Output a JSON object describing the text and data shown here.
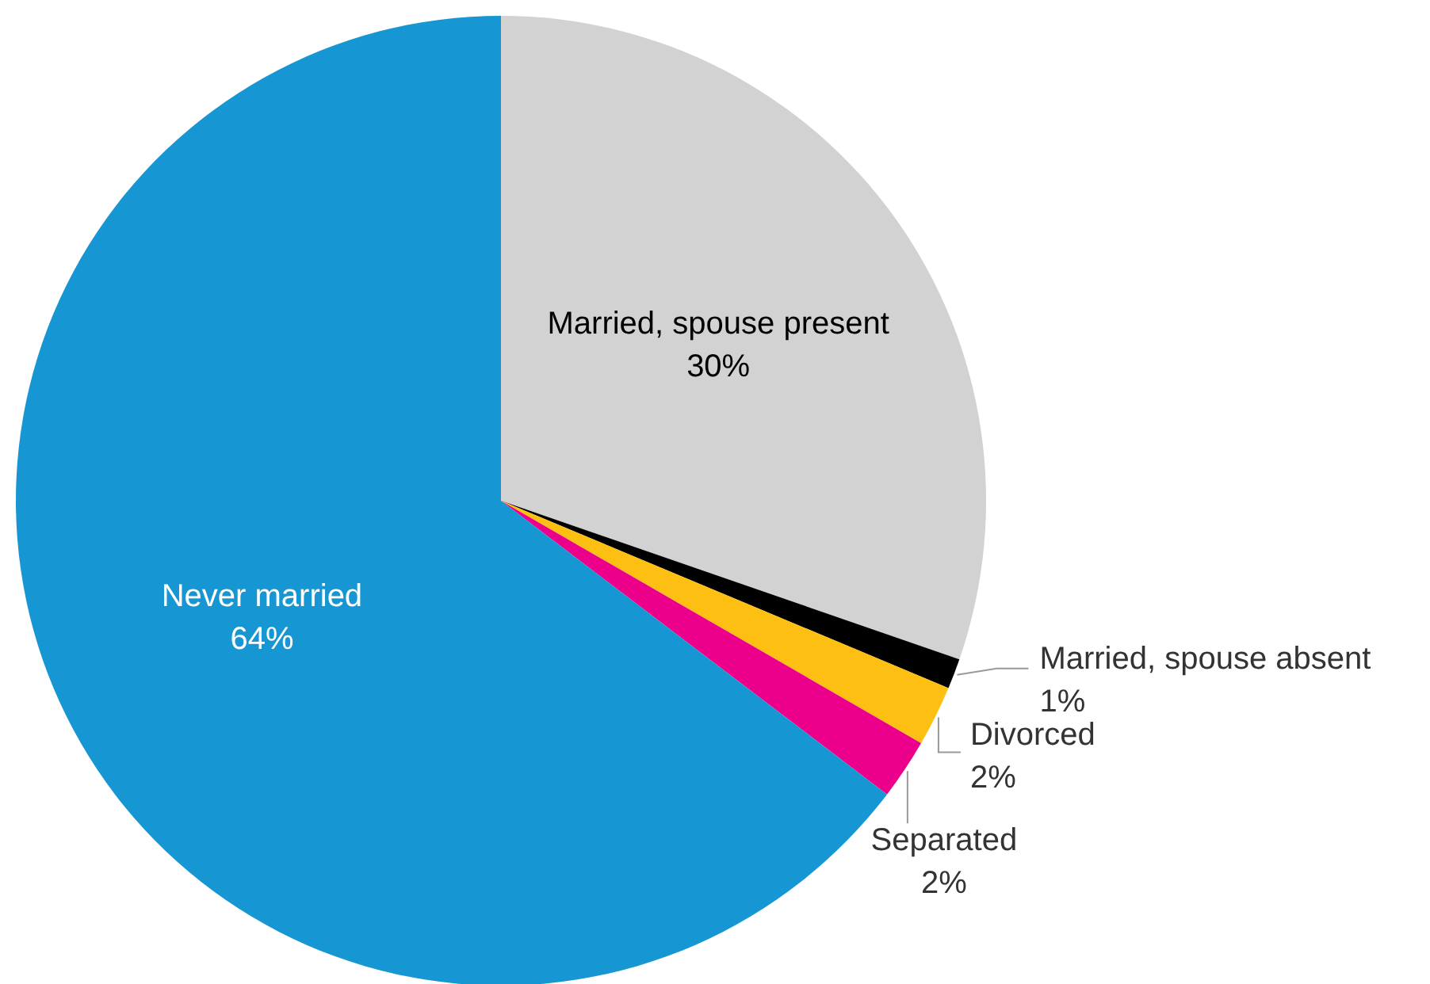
{
  "chart_data": {
    "type": "pie",
    "categories": [
      "Married, spouse present",
      "Married, spouse absent",
      "Divorced",
      "Separated",
      "Never married"
    ],
    "values": [
      30,
      1,
      2,
      2,
      64
    ],
    "value_labels": [
      "30%",
      "1%",
      "2%",
      "2%",
      "64%"
    ],
    "colors": [
      "#d2d2d2",
      "#000000",
      "#fdbf11",
      "#ec008b",
      "#1696d2"
    ]
  }
}
